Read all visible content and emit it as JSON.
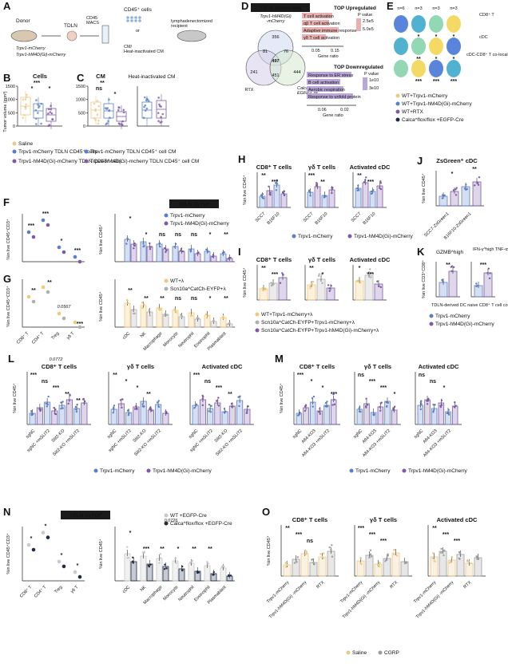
{
  "panels": {
    "A": {
      "label": "A",
      "donor": "Donor",
      "tdln": "TDLN",
      "cd45_macs": "CD45\nMACS",
      "cd45_cells": "CD45⁺ cells",
      "or": "or",
      "cm": "CM/\nHeat-inactivated CM",
      "recipient": "lymphadenectomized\nrecipient",
      "group1": "Trpv1-mCherry",
      "group2": "Trpv1-hM4D(Gi)-mCherry"
    },
    "B": {
      "label": "B",
      "title": "Cells",
      "ylabel": "Tumor volume (mm³)",
      "yticks": [
        "0",
        "500",
        "1000",
        "1500"
      ],
      "stars": [
        "***",
        "*",
        "*"
      ]
    },
    "C": {
      "label": "C",
      "title1": "CM",
      "title2": "Heat-inactivated CM",
      "yticks": [
        "0",
        "500",
        "1000",
        "1500"
      ],
      "stars": [
        "**",
        "ns",
        "*"
      ]
    },
    "BC_legend": {
      "saline": "Saline",
      "trpv1_cells": "Trpv1-mCherry TDLN CD45⁺ cells",
      "hm4d_cells": "Trpv1-hM4D(Gi)-mCherry TDLN CD45⁺ cells",
      "trpv1_cm": "Trpv1-mCherry TDLN CD45⁺ cell CM",
      "hm4d_cm": "Trpv1-hM4D(Gi)-mcherry TDLN CD45⁺ cell CM"
    },
    "D": {
      "label": "D",
      "header": "TDLN Stereo-seq",
      "venn_top": "Trpv1-hM4D(Gi)\n-mCherry",
      "venn_left": "RTX",
      "venn_right": "Calca^flox/flox +\nEGFP-Cre",
      "counts": [
        "356",
        "81",
        "76",
        "241",
        "451",
        "444",
        "497"
      ],
      "up_title": "TOP Upregulated",
      "up_terms": [
        "T cell activation",
        "αβ T cell activation",
        "Adaptive immune response",
        "γδ T cell activation"
      ],
      "up_legend": [
        "P value",
        "2.5e5",
        "5.0e5"
      ],
      "up_xticks": [
        "0.05",
        "0.15"
      ],
      "down_title": "TOP Downregulated",
      "down_terms": [
        "Response to ER stress",
        "B cell activation",
        "Aerobic respiration",
        "Response to unfold protein"
      ],
      "down_legend": [
        "P value",
        "1e10",
        "3e10"
      ],
      "down_xticks": [
        "0.06",
        "0.02"
      ],
      "xlabel": "Gene ratio"
    },
    "E": {
      "label": "E",
      "ns": [
        "n=6",
        "n=3",
        "n=3",
        "n=3"
      ],
      "row_labels": [
        "CD8⁺ T",
        "cDC",
        "cDC-CD8⁺ T co-localization niche"
      ],
      "scale_ticks": [
        "0.25",
        "1",
        "0.1",
        "0.5",
        "0",
        "1"
      ],
      "legend": [
        "WT+Trpv1-mCherry",
        "WT+Trpv1-hM4D(Gi)-mCherry",
        "WT+RTX",
        "Calca^flox/flox +EGFP-Cre"
      ],
      "stars": [
        "*",
        "*",
        "*",
        "**",
        "*",
        "*",
        "***",
        "***",
        "***"
      ]
    },
    "F": {
      "label": "F",
      "banner": "TDLN CyTOF",
      "ylabel1": "%in live CD45⁺CD3⁺",
      "ylabel2": "%in live CD45⁺",
      "legend": [
        "Trpv1-mCherry",
        "Trpv1-hM4D(Gi)-mCherry"
      ],
      "stars_left": [
        "***",
        "***",
        "*",
        "***"
      ],
      "stars_right": [
        "*",
        "*",
        "ns",
        "ns",
        "ns",
        "*",
        "**"
      ]
    },
    "G": {
      "label": "G",
      "ylabel1": "%in live CD45⁺CD3⁺",
      "ylabel2": "%in live CD45⁺",
      "legend": [
        "WT+λ",
        "Scn10a^CatCh-EYFP+λ"
      ],
      "xcat_left": [
        "CD8⁺ T",
        "CD4⁺ T",
        "Treg",
        "γδ T"
      ],
      "xcat_right": [
        "cDC",
        "NK",
        "Macrophage",
        "Monocyte",
        "Neutrophil",
        "Eosinophil",
        "Plasmablast"
      ],
      "pval": "0.0567",
      "stars_left": [
        "**",
        "**",
        "***"
      ],
      "stars_right": [
        "**",
        "**",
        "**",
        "ns",
        "ns",
        "*",
        "**"
      ]
    },
    "H": {
      "label": "H",
      "titles": [
        "CD8⁺ T cells",
        "γδ T cells",
        "Activated cDC"
      ],
      "ylabel": "%in live CD45⁺",
      "xcats": [
        "SCC7",
        "B16F10"
      ],
      "legend": [
        "Trpv1-mCherry",
        "Trpv1-hM4D(Gi)-mCherry"
      ],
      "stars": [
        "**",
        "***",
        "**",
        "***",
        "**",
        "***"
      ]
    },
    "I": {
      "label": "I",
      "titles": [
        "CD8⁺ T cells",
        "γδ T cells",
        "Activated cDC"
      ],
      "ylabel": "%in live CD45⁺",
      "legend": [
        "WT+Trpv1-mCherry+λ",
        "Scn10a^CatCh-EYFP+Trpv1-mCherry+λ",
        "Scn10a^CatCh-EYFP+Trpv1-hM4D(Gi)-mCherry+λ"
      ],
      "stars": [
        "**",
        "**",
        "*",
        "***",
        "*",
        "***"
      ]
    },
    "J": {
      "label": "J",
      "title": "ZsGreen⁺ cDC",
      "ylabel": "%in live CD45⁺",
      "xcats": [
        "SCC7-ZsGreen1",
        "B16F10-ZsGreen1"
      ],
      "stars": [
        "*",
        "**"
      ]
    },
    "K": {
      "label": "K",
      "titles": [
        "GZMB^high",
        "IFN-γ^high TNF-α^high"
      ],
      "ylabel": "%in live CD3⁺CD8⁺",
      "note": "TDLN-derived DC naive CD8⁺ T cell co-culture",
      "legend": [
        "Trpv1-mCherry",
        "Trpv1-hM4D(Gi)-mCherry"
      ],
      "stars": [
        "**",
        "***"
      ]
    },
    "L": {
      "label": "L",
      "titles": [
        "CD8⁺ T cells",
        "γδ T cells",
        "Activated cDC"
      ],
      "ylabel": "%in live CD45⁺",
      "xcats": [
        "sgNC",
        "sgNC +mSLIT2",
        "Slit2-KO",
        "Slit2-KO +mSLIT2"
      ],
      "pval": "0.0772",
      "legend": [
        "Trpv1-mCherry",
        "Trpv1-hM4D(Gi)-mCherry"
      ],
      "stars": [
        "***",
        "**",
        "***",
        "ns",
        "*",
        "ns",
        "***",
        "*",
        "***",
        "**",
        "**",
        "**",
        "**"
      ]
    },
    "M": {
      "label": "M",
      "titles": [
        "CD8⁺ T cells",
        "γδ T cells",
        "Activated cDC"
      ],
      "ylabel": "%in live CD45⁺",
      "xcats": [
        "sgNC",
        "Afl4-KO3",
        "Afl4-KO3 +mSLIT2"
      ],
      "legend": [
        "Trpv1-mCherry",
        "Trpv1-hM4D(Gi)-mCherry"
      ],
      "stars": [
        "***",
        "ns",
        "ns",
        "*",
        "***",
        "ns",
        "*",
        "***",
        "*",
        "***",
        "*"
      ]
    },
    "N": {
      "label": "N",
      "banner": "TDLN CyTOF",
      "ylabel1": "%in live CD45⁺CD3⁺",
      "ylabel2": "%in live CD45⁺",
      "legend": [
        "WT +EGFP-Cre",
        "Calca^flox/flox +EGFP-Cre"
      ],
      "xcat_left": [
        "CD8⁺ T",
        "CD4⁺ T",
        "Treg",
        "γδ T"
      ],
      "xcat_right": [
        "cDC",
        "NK",
        "Macrophage",
        "Monocyte",
        "Neutrophil",
        "Eosinophil",
        "Plasmablast"
      ],
      "pval": "0.0726",
      "stars_left": [
        "*",
        "*",
        "*",
        "*"
      ],
      "stars_right": [
        "*",
        "***",
        "**",
        "*",
        "**",
        "**"
      ]
    },
    "O": {
      "label": "O",
      "titles": [
        "CD8⁺ T cells",
        "γδ T cells",
        "Activated cDC"
      ],
      "ylabel": "%in live CD45⁺",
      "xcats": [
        "Trpv1-mCherry",
        "Trpv1-hM4D(Gi) -mCherry",
        "RTX"
      ],
      "legend": [
        "Saline",
        "CGRP"
      ],
      "stars": [
        "**",
        "***",
        "**",
        "***",
        "***",
        "***",
        "ns",
        "***",
        "***"
      ]
    }
  },
  "colors": {
    "saline": "#e8c98a",
    "trpv1": "#5b7fc7",
    "hm4d": "#7d5aa6",
    "rtx": "#9b7bc0",
    "calca": "#1f2a44",
    "wt": "#f0c978",
    "scn": "#b0b0b0",
    "cgrp": "#9e9e9e",
    "up_bar": "#e8b0b0",
    "down_bar": "#b9a7d8",
    "venn_mid": "#c0392b"
  }
}
